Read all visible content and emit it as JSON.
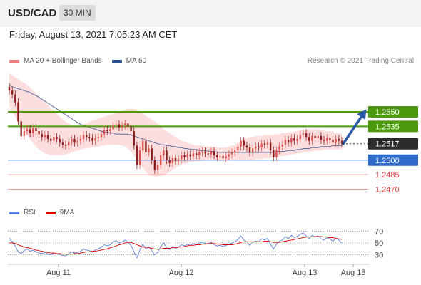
{
  "header": {
    "symbol": "USD/CAD",
    "timeframe": "30 MIN"
  },
  "datetime": "Friday, August 13, 2021 7:05:23 AM CET",
  "credit": "Research © 2021 Trading Central",
  "legend_main": [
    {
      "label": "MA 20 + Bollinger Bands",
      "color": "#f08080"
    },
    {
      "label": "MA 50",
      "color": "#2a4f8f"
    }
  ],
  "legend_rsi": [
    {
      "label": "RSI",
      "color": "#5b7fd6"
    },
    {
      "label": "9MA",
      "color": "#e00000"
    }
  ],
  "colors": {
    "resistance": "#4c9a0c",
    "pivot": "#2f6cc9",
    "support": "#f4a0a0",
    "current": "#2b2b2b",
    "candle_up": "#d9534f",
    "candle_down": "#8b1a1a",
    "arrow": "#2a5aa8",
    "band": "#fbd3d3"
  },
  "chart_data": {
    "type": "candlestick",
    "title": "USD/CAD",
    "timeframe": "30 MIN",
    "x_tick_labels": [
      "Aug 11",
      "Aug 12",
      "Aug 13",
      "Aug 18"
    ],
    "price_range": [
      1.246,
      1.2595
    ],
    "current_price": "1.2517",
    "levels": [
      {
        "label": "1.2550",
        "value": 1.255,
        "kind": "resistance"
      },
      {
        "label": "1.2535",
        "value": 1.2535,
        "kind": "resistance"
      },
      {
        "label": "1.2517",
        "value": 1.2517,
        "kind": "current"
      },
      {
        "label": "1.2500",
        "value": 1.25,
        "kind": "pivot"
      },
      {
        "label": "1.2485",
        "value": 1.2485,
        "kind": "support"
      },
      {
        "label": "1.2470",
        "value": 1.247,
        "kind": "support"
      }
    ],
    "close": [
      1.2572,
      1.2568,
      1.256,
      1.254,
      1.2525,
      1.253,
      1.2532,
      1.2528,
      1.2533,
      1.253,
      1.2527,
      1.2524,
      1.2526,
      1.2522,
      1.252,
      1.2524,
      1.2522,
      1.2518,
      1.2516,
      1.2515,
      1.2519,
      1.2522,
      1.2518,
      1.252,
      1.2522,
      1.2526,
      1.2524,
      1.2523,
      1.252,
      1.2523,
      1.2524,
      1.2527,
      1.2531,
      1.253,
      1.2532,
      1.2536,
      1.2537,
      1.2534,
      1.2536,
      1.2538,
      1.2535,
      1.253,
      1.2515,
      1.2495,
      1.251,
      1.252,
      1.2508,
      1.2512,
      1.25,
      1.249,
      1.2495,
      1.2505,
      1.251,
      1.25,
      1.2497,
      1.2502,
      1.2499,
      1.2501,
      1.2505,
      1.2503,
      1.2506,
      1.2504,
      1.2507,
      1.2505,
      1.2508,
      1.2509,
      1.2507,
      1.2506,
      1.2509,
      1.2505,
      1.2503,
      1.2504,
      1.2502,
      1.2504,
      1.2506,
      1.2508,
      1.251,
      1.2514,
      1.252,
      1.2515,
      1.2513,
      1.2508,
      1.2512,
      1.2514,
      1.2513,
      1.2517,
      1.2516,
      1.2518,
      1.251,
      1.2503,
      1.251,
      1.2514,
      1.2516,
      1.2521,
      1.2518,
      1.2523,
      1.252,
      1.2522,
      1.2526,
      1.2528,
      1.2524,
      1.252,
      1.2525,
      1.2523,
      1.2525,
      1.2521,
      1.252,
      1.2523,
      1.2521,
      1.2518,
      1.2522,
      1.252,
      1.2517
    ],
    "ma50": [
      1.2578,
      1.2576,
      1.2575,
      1.2574,
      1.2573,
      1.2572,
      1.2571,
      1.257,
      1.2568,
      1.2567,
      1.2565,
      1.2563,
      1.2561,
      1.2559,
      1.2557,
      1.2555,
      1.2553,
      1.2551,
      1.2549,
      1.2547,
      1.2545,
      1.2543,
      1.2541,
      1.2539,
      1.2537,
      1.2536,
      1.2535,
      1.2534,
      1.2533,
      1.2532,
      1.2531,
      1.253,
      1.2529,
      1.2529,
      1.2528,
      1.2528,
      1.2527,
      1.2527,
      1.2527,
      1.2527,
      1.2527,
      1.2526,
      1.2525,
      1.2524,
      1.2523,
      1.2522,
      1.2521,
      1.252,
      1.2519,
      1.2518,
      1.2517,
      1.2516,
      1.2516,
      1.2515,
      1.2515,
      1.2514,
      1.2514,
      1.2513,
      1.2513,
      1.2512,
      1.2512,
      1.2511,
      1.2511,
      1.2511,
      1.251,
      1.251,
      1.251,
      1.2509,
      1.2509,
      1.2509,
      1.2508,
      1.2508,
      1.2508,
      1.2508,
      1.2508,
      1.2508,
      1.2508,
      1.2508,
      1.2508,
      1.2508,
      1.2508,
      1.2508,
      1.2508,
      1.2508,
      1.2508,
      1.2508,
      1.2508,
      1.2508,
      1.2508,
      1.2508,
      1.2509,
      1.2509,
      1.2509,
      1.2509,
      1.251,
      1.251,
      1.251,
      1.2511,
      1.2511,
      1.2512,
      1.2512,
      1.2512,
      1.2513,
      1.2513,
      1.2513,
      1.2514,
      1.2514,
      1.2514,
      1.2514,
      1.2515,
      1.2515,
      1.2515,
      1.2515
    ],
    "bb_upper": [
      1.259,
      1.2588,
      1.2586,
      1.2584,
      1.2582,
      1.258,
      1.2578,
      1.2575,
      1.2572,
      1.2569,
      1.2566,
      1.2563,
      1.256,
      1.2557,
      1.2554,
      1.2551,
      1.2548,
      1.2545,
      1.2542,
      1.254,
      1.2538,
      1.2536,
      1.2535,
      1.2535,
      1.2536,
      1.2537,
      1.2538,
      1.254,
      1.2541,
      1.2542,
      1.2543,
      1.2544,
      1.2545,
      1.2546,
      1.2547,
      1.2548,
      1.2549,
      1.255,
      1.2551,
      1.2552,
      1.2553,
      1.2553,
      1.2553,
      1.2552,
      1.255,
      1.2548,
      1.2546,
      1.2544,
      1.2542,
      1.254,
      1.2538,
      1.2535,
      1.2532,
      1.253,
      1.2528,
      1.2526,
      1.2524,
      1.2522,
      1.252,
      1.2519,
      1.2518,
      1.2517,
      1.2516,
      1.2515,
      1.2515,
      1.2515,
      1.2514,
      1.2514,
      1.2514,
      1.2514,
      1.2513,
      1.2513,
      1.2513,
      1.2513,
      1.2514,
      1.2515,
      1.2516,
      1.2518,
      1.252,
      1.2522,
      1.2523,
      1.2524,
      1.2524,
      1.2525,
      1.2525,
      1.2525,
      1.2526,
      1.2526,
      1.2526,
      1.2526,
      1.2527,
      1.2527,
      1.2528,
      1.2528,
      1.2529,
      1.2529,
      1.253,
      1.253,
      1.2531,
      1.2531,
      1.2532,
      1.2532,
      1.2532,
      1.2532,
      1.2532,
      1.2531,
      1.2531,
      1.253,
      1.253,
      1.2529,
      1.2528,
      1.2528,
      1.2527
    ],
    "bb_lower": [
      1.2556,
      1.255,
      1.2545,
      1.254,
      1.2535,
      1.253,
      1.2526,
      1.2522,
      1.2518,
      1.2514,
      1.2511,
      1.2509,
      1.2507,
      1.2506,
      1.2505,
      1.2505,
      1.2505,
      1.2505,
      1.2505,
      1.2506,
      1.2507,
      1.2508,
      1.2509,
      1.251,
      1.2511,
      1.2512,
      1.2512,
      1.2513,
      1.2513,
      1.2514,
      1.2514,
      1.2515,
      1.2515,
      1.2516,
      1.2516,
      1.2516,
      1.2516,
      1.2516,
      1.2515,
      1.2514,
      1.2512,
      1.2509,
      1.2505,
      1.25,
      1.2496,
      1.2492,
      1.2488,
      1.2486,
      1.2484,
      1.2483,
      1.2483,
      1.2484,
      1.2485,
      1.2486,
      1.2488,
      1.249,
      1.2492,
      1.2494,
      1.2495,
      1.2496,
      1.2497,
      1.2498,
      1.2498,
      1.2499,
      1.2499,
      1.2499,
      1.25,
      1.25,
      1.25,
      1.25,
      1.25,
      1.25,
      1.25,
      1.25,
      1.25,
      1.25,
      1.25,
      1.25,
      1.25,
      1.25,
      1.25,
      1.25,
      1.25,
      1.2501,
      1.2501,
      1.2501,
      1.2502,
      1.2502,
      1.2502,
      1.2503,
      1.2503,
      1.2504,
      1.2504,
      1.2505,
      1.2505,
      1.2506,
      1.2506,
      1.2507,
      1.2507,
      1.2508,
      1.2508,
      1.2509,
      1.2509,
      1.251,
      1.251,
      1.251,
      1.2511,
      1.2511,
      1.2511,
      1.2511,
      1.2511,
      1.2511,
      1.2511
    ],
    "rsi": {
      "range": [
        15,
        85
      ],
      "levels": [
        "70",
        "50",
        "30"
      ],
      "values": [
        58,
        52,
        45,
        35,
        32,
        37,
        40,
        36,
        38,
        35,
        33,
        32,
        34,
        31,
        30,
        33,
        32,
        30,
        29,
        28,
        32,
        35,
        33,
        34,
        36,
        40,
        38,
        37,
        35,
        38,
        40,
        43,
        47,
        45,
        47,
        52,
        54,
        50,
        52,
        55,
        51,
        46,
        35,
        25,
        38,
        48,
        40,
        44,
        37,
        30,
        34,
        44,
        50,
        42,
        39,
        44,
        41,
        43,
        47,
        45,
        48,
        46,
        49,
        47,
        50,
        51,
        49,
        48,
        51,
        47,
        45,
        46,
        44,
        46,
        48,
        50,
        52,
        56,
        62,
        55,
        52,
        46,
        51,
        53,
        52,
        57,
        55,
        58,
        48,
        40,
        48,
        53,
        55,
        61,
        57,
        63,
        59,
        61,
        65,
        67,
        62,
        57,
        63,
        60,
        62,
        57,
        55,
        59,
        57,
        53,
        58,
        55,
        50
      ],
      "ma9": [
        50,
        50,
        49,
        47,
        45,
        43,
        42,
        41,
        40,
        38,
        37,
        36,
        35,
        34,
        33,
        33,
        32,
        32,
        31,
        31,
        31,
        31,
        32,
        32,
        33,
        34,
        35,
        35,
        36,
        36,
        37,
        38,
        39,
        40,
        42,
        43,
        45,
        47,
        48,
        50,
        51,
        51,
        49,
        47,
        45,
        43,
        43,
        42,
        41,
        40,
        39,
        40,
        41,
        41,
        41,
        42,
        42,
        43,
        43,
        44,
        45,
        46,
        46,
        47,
        47,
        48,
        48,
        49,
        49,
        49,
        48,
        48,
        47,
        47,
        47,
        47,
        48,
        49,
        51,
        52,
        52,
        52,
        52,
        52,
        52,
        52,
        53,
        53,
        52,
        51,
        51,
        51,
        52,
        53,
        54,
        55,
        56,
        57,
        58,
        59,
        60,
        60,
        60,
        61,
        61,
        61,
        60,
        60,
        59,
        59,
        58,
        57,
        56
      ]
    }
  }
}
